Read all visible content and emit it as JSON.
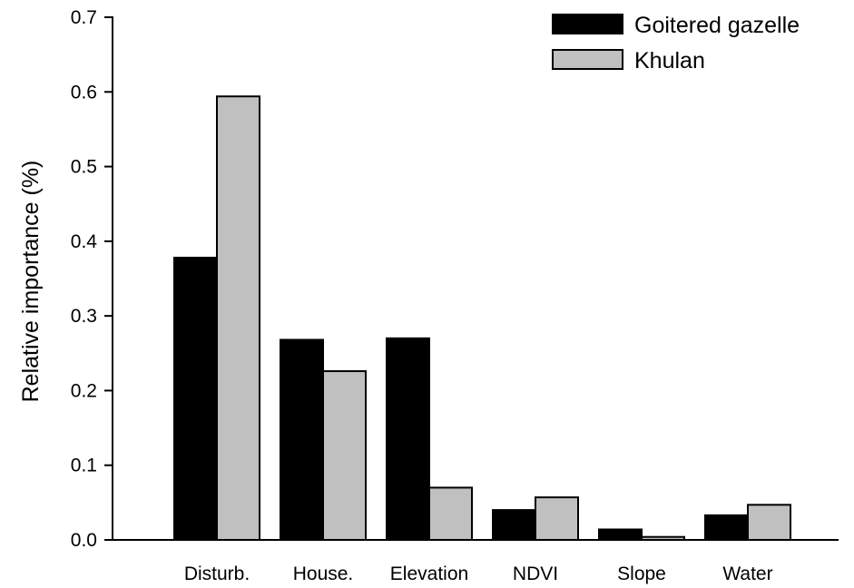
{
  "chart_data": {
    "type": "bar",
    "title": "",
    "xlabel": "",
    "ylabel": "Relative importance (%)",
    "categories": [
      "Disturb.",
      "House.",
      "Elevation",
      "NDVI",
      "Slope",
      "Water"
    ],
    "series": [
      {
        "name": "Goitered gazelle",
        "color": "#000000",
        "values": [
          0.378,
          0.268,
          0.27,
          0.04,
          0.014,
          0.033
        ]
      },
      {
        "name": "Khulan",
        "color": "#c0c0c0",
        "values": [
          0.594,
          0.226,
          0.07,
          0.057,
          0.004,
          0.047
        ]
      }
    ],
    "ylim": [
      0,
      0.7
    ],
    "yticks": [
      "0.0",
      "0.1",
      "0.2",
      "0.3",
      "0.4",
      "0.5",
      "0.6",
      "0.7"
    ],
    "grid": false,
    "legend": "top-right"
  }
}
